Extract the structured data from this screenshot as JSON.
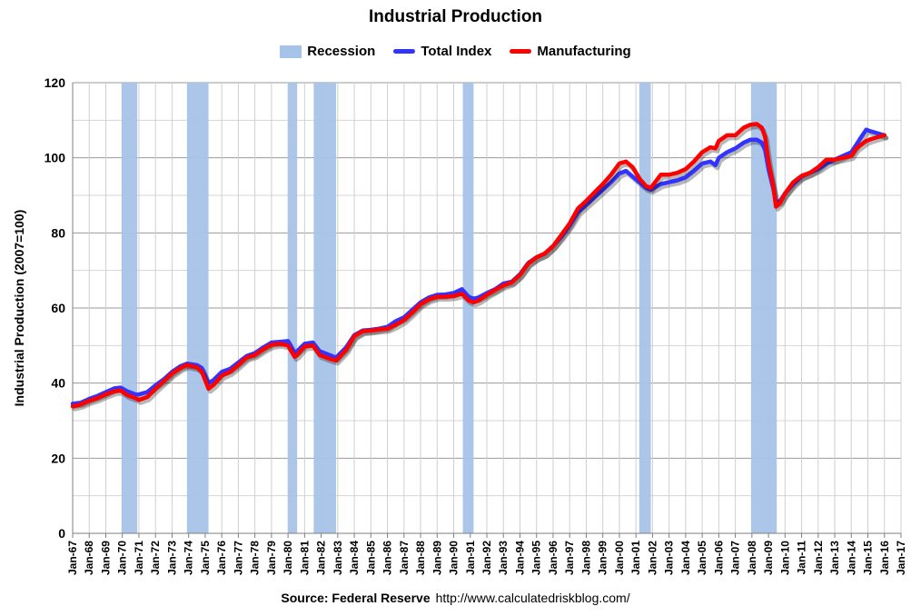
{
  "chart_data": {
    "type": "line",
    "title": "Industrial Production",
    "ylabel": "Industrial Production (2007=100)",
    "xlabel": "",
    "ylim": [
      0,
      120
    ],
    "yticks": [
      0,
      20,
      40,
      60,
      80,
      100,
      120
    ],
    "xlim": [
      1967.0,
      2017.0
    ],
    "xtick_labels": [
      "Jan-67",
      "Jan-68",
      "Jan-69",
      "Jan-70",
      "Jan-71",
      "Jan-72",
      "Jan-73",
      "Jan-74",
      "Jan-75",
      "Jan-76",
      "Jan-77",
      "Jan-78",
      "Jan-79",
      "Jan-80",
      "Jan-81",
      "Jan-82",
      "Jan-83",
      "Jan-84",
      "Jan-85",
      "Jan-86",
      "Jan-87",
      "Jan-88",
      "Jan-89",
      "Jan-90",
      "Jan-91",
      "Jan-92",
      "Jan-93",
      "Jan-94",
      "Jan-95",
      "Jan-96",
      "Jan-97",
      "Jan-98",
      "Jan-99",
      "Jan-00",
      "Jan-01",
      "Jan-02",
      "Jan-03",
      "Jan-04",
      "Jan-05",
      "Jan-06",
      "Jan-07",
      "Jan-08",
      "Jan-09",
      "Jan-10",
      "Jan-11",
      "Jan-12",
      "Jan-13",
      "Jan-14",
      "Jan-15",
      "Jan-16",
      "Jan-17"
    ],
    "grid": true,
    "legend_position": "top-center",
    "legend": [
      {
        "name": "Recession",
        "kind": "box",
        "color": "#a6c3e8"
      },
      {
        "name": "Total Index",
        "kind": "line",
        "color": "#3333ff"
      },
      {
        "name": "Manufacturing",
        "kind": "line",
        "color": "#ff0000"
      }
    ],
    "recessions": [
      [
        1969.95,
        1970.9
      ],
      [
        1973.9,
        1975.2
      ],
      [
        1980.0,
        1980.55
      ],
      [
        1981.55,
        1982.9
      ],
      [
        1990.55,
        1991.2
      ],
      [
        2001.2,
        2001.9
      ],
      [
        2007.95,
        2009.5
      ]
    ],
    "series": [
      {
        "name": "Total Index",
        "color": "#3333ff",
        "x": [
          1967.0,
          1967.5,
          1968.0,
          1968.5,
          1969.0,
          1969.5,
          1969.9,
          1970.3,
          1970.8,
          1971.0,
          1971.5,
          1972.0,
          1972.5,
          1973.0,
          1973.5,
          1973.9,
          1974.5,
          1974.8,
          1975.2,
          1975.5,
          1976.0,
          1976.5,
          1977.0,
          1977.5,
          1978.0,
          1978.5,
          1979.0,
          1979.5,
          1980.0,
          1980.4,
          1980.55,
          1981.0,
          1981.5,
          1981.9,
          1982.5,
          1982.9,
          1983.5,
          1984.0,
          1984.5,
          1985.0,
          1985.5,
          1986.0,
          1986.5,
          1987.0,
          1987.5,
          1988.0,
          1988.5,
          1989.0,
          1989.5,
          1990.0,
          1990.5,
          1990.9,
          1991.2,
          1991.5,
          1992.0,
          1992.5,
          1993.0,
          1993.5,
          1994.0,
          1994.5,
          1995.0,
          1995.5,
          1996.0,
          1996.5,
          1997.0,
          1997.5,
          1998.0,
          1998.5,
          1999.0,
          1999.5,
          2000.0,
          2000.4,
          2000.8,
          2001.2,
          2001.6,
          2001.9,
          2002.5,
          2003.0,
          2003.5,
          2004.0,
          2004.5,
          2005.0,
          2005.5,
          2005.8,
          2006.0,
          2006.5,
          2007.0,
          2007.5,
          2007.9,
          2008.3,
          2008.6,
          2008.8,
          2009.0,
          2009.3,
          2009.45,
          2009.7,
          2010.0,
          2010.5,
          2011.0,
          2011.5,
          2012.0,
          2012.5,
          2013.0,
          2013.5,
          2014.0,
          2014.3,
          2014.6,
          2014.9,
          2015.2,
          2015.6,
          2016.0
        ],
        "values": [
          34.5,
          34.8,
          35.8,
          36.6,
          37.6,
          38.6,
          38.8,
          37.8,
          37.0,
          37.0,
          37.6,
          39.4,
          41.0,
          43.0,
          44.5,
          45.2,
          44.8,
          44.0,
          40.0,
          40.8,
          43.0,
          43.8,
          45.5,
          47.2,
          48.0,
          49.5,
          50.8,
          51.0,
          51.2,
          48.0,
          48.5,
          50.5,
          50.8,
          48.5,
          47.5,
          46.8,
          49.5,
          52.8,
          54.0,
          54.2,
          54.5,
          55.0,
          56.5,
          57.5,
          59.5,
          61.5,
          62.8,
          63.5,
          63.6,
          64.0,
          65.0,
          63.0,
          62.5,
          62.8,
          64.0,
          65.0,
          66.5,
          67.0,
          69.0,
          72.0,
          73.5,
          74.5,
          76.5,
          79.0,
          82.0,
          85.5,
          87.5,
          89.5,
          91.5,
          93.5,
          95.8,
          96.5,
          95.0,
          93.5,
          92.0,
          91.5,
          93.0,
          93.5,
          94.0,
          94.8,
          96.5,
          98.5,
          99.0,
          98.0,
          100.0,
          101.5,
          102.5,
          104.0,
          104.8,
          104.8,
          104.0,
          102.0,
          97.0,
          91.5,
          88.0,
          88.5,
          90.5,
          93.0,
          95.0,
          96.0,
          97.0,
          98.5,
          99.5,
          100.5,
          101.5,
          103.5,
          105.5,
          107.5,
          107.0,
          106.5,
          106.0
        ]
      },
      {
        "name": "Manufacturing",
        "color": "#ff0000",
        "x": [
          1967.0,
          1967.5,
          1968.0,
          1968.5,
          1969.0,
          1969.5,
          1969.9,
          1970.3,
          1970.8,
          1971.0,
          1971.5,
          1972.0,
          1972.5,
          1973.0,
          1973.5,
          1973.9,
          1974.5,
          1974.8,
          1975.2,
          1975.5,
          1976.0,
          1976.5,
          1977.0,
          1977.5,
          1978.0,
          1978.5,
          1979.0,
          1979.5,
          1980.0,
          1980.4,
          1980.55,
          1981.0,
          1981.5,
          1981.9,
          1982.5,
          1982.9,
          1983.5,
          1984.0,
          1984.5,
          1985.0,
          1985.5,
          1986.0,
          1986.5,
          1987.0,
          1987.5,
          1988.0,
          1988.5,
          1989.0,
          1989.5,
          1990.0,
          1990.5,
          1990.9,
          1991.2,
          1991.5,
          1992.0,
          1992.5,
          1993.0,
          1993.5,
          1994.0,
          1994.5,
          1995.0,
          1995.5,
          1996.0,
          1996.5,
          1997.0,
          1997.5,
          1998.0,
          1998.5,
          1999.0,
          1999.5,
          2000.0,
          2000.4,
          2000.8,
          2001.2,
          2001.6,
          2001.9,
          2002.5,
          2003.0,
          2003.5,
          2004.0,
          2004.5,
          2005.0,
          2005.5,
          2005.8,
          2006.0,
          2006.5,
          2007.0,
          2007.5,
          2007.9,
          2008.3,
          2008.6,
          2008.8,
          2009.0,
          2009.3,
          2009.45,
          2009.7,
          2010.0,
          2010.5,
          2011.0,
          2011.5,
          2012.0,
          2012.5,
          2013.0,
          2013.5,
          2014.0,
          2014.3,
          2014.6,
          2014.9,
          2015.2,
          2015.6,
          2016.0
        ],
        "values": [
          33.8,
          34.3,
          35.3,
          36.0,
          37.0,
          37.8,
          38.0,
          36.8,
          36.0,
          35.5,
          36.3,
          38.5,
          40.5,
          42.5,
          44.0,
          44.8,
          44.2,
          43.0,
          38.5,
          39.5,
          42.0,
          43.0,
          44.8,
          46.8,
          47.5,
          49.0,
          50.2,
          50.5,
          50.0,
          47.0,
          47.5,
          49.8,
          50.0,
          47.5,
          46.5,
          46.0,
          48.8,
          52.5,
          53.8,
          54.0,
          54.3,
          54.5,
          55.5,
          56.8,
          58.8,
          61.0,
          62.3,
          63.0,
          63.0,
          63.2,
          63.8,
          62.0,
          61.5,
          62.0,
          63.5,
          64.8,
          66.0,
          66.8,
          68.8,
          71.8,
          73.5,
          74.5,
          76.5,
          79.5,
          82.5,
          86.5,
          88.5,
          90.8,
          93.0,
          95.5,
          98.5,
          99.0,
          97.5,
          94.5,
          92.5,
          92.0,
          95.5,
          95.5,
          96.0,
          97.0,
          99.0,
          101.5,
          102.8,
          102.5,
          104.5,
          106.0,
          106.0,
          108.0,
          108.8,
          109.0,
          108.0,
          105.5,
          99.0,
          92.0,
          87.0,
          88.0,
          90.5,
          93.5,
          95.2,
          96.0,
          97.5,
          99.5,
          99.5,
          100.0,
          100.5,
          102.5,
          103.5,
          104.5,
          105.0,
          105.5,
          106.0
        ]
      }
    ]
  },
  "source_label": "Source: Federal Reserve",
  "source_url": "http://www.calculatedriskblog.com/"
}
